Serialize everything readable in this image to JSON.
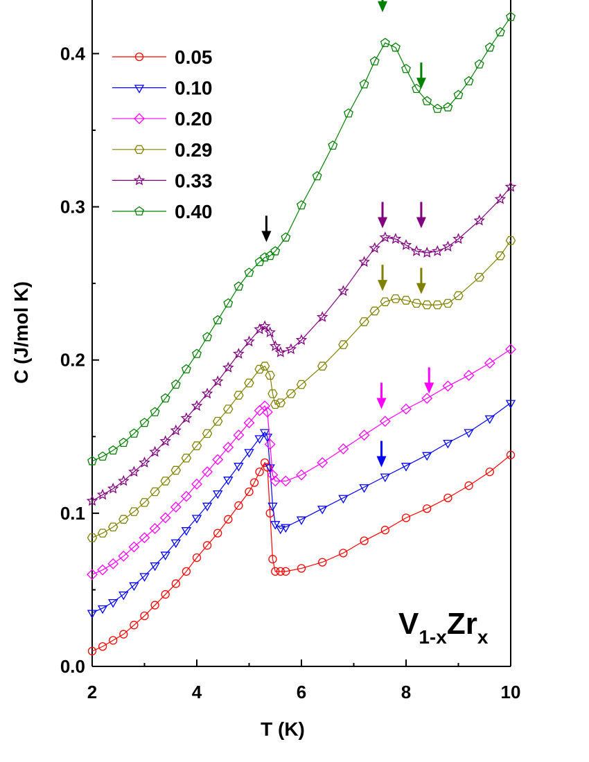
{
  "chart_data": {
    "type": "line",
    "xlabel": "T (K)",
    "ylabel": "C (J/mol K)",
    "annotation": [
      "V",
      "1-x",
      "Zr",
      "x"
    ],
    "xlim": [
      2,
      10
    ],
    "ylim": [
      0,
      0.435
    ],
    "xticks": [
      2,
      4,
      6,
      8,
      10
    ],
    "xminorticks": [
      3,
      5,
      7,
      9
    ],
    "yticks": [
      {
        "value": 0,
        "label": "0.0"
      },
      0.1,
      0.2,
      0.3,
      0.4
    ],
    "yminorticks": [
      0.05,
      0.15,
      0.25,
      0.35
    ],
    "legend": "upper left",
    "series": [
      {
        "name": "0.05",
        "color": "#ff0000",
        "marker": "circle",
        "x": [
          2.0,
          2.2,
          2.4,
          2.6,
          2.8,
          3.0,
          3.2,
          3.4,
          3.6,
          3.8,
          4.0,
          4.2,
          4.4,
          4.6,
          4.8,
          5.0,
          5.1,
          5.2,
          5.3,
          5.35,
          5.4,
          5.45,
          5.5,
          5.6,
          5.7,
          6.0,
          6.4,
          6.8,
          7.2,
          7.6,
          8.0,
          8.4,
          8.8,
          9.2,
          9.6,
          10.0
        ],
        "values": [
          0.01,
          0.013,
          0.017,
          0.021,
          0.027,
          0.033,
          0.04,
          0.047,
          0.054,
          0.062,
          0.071,
          0.079,
          0.087,
          0.096,
          0.105,
          0.114,
          0.12,
          0.127,
          0.133,
          0.13,
          0.1,
          0.07,
          0.062,
          0.062,
          0.062,
          0.064,
          0.068,
          0.074,
          0.082,
          0.089,
          0.097,
          0.103,
          0.11,
          0.118,
          0.127,
          0.138
        ]
      },
      {
        "name": "0.10",
        "color": "#0000ff",
        "marker": "triangle-down",
        "x": [
          2.0,
          2.2,
          2.4,
          2.6,
          2.8,
          3.0,
          3.2,
          3.4,
          3.6,
          3.8,
          4.0,
          4.2,
          4.4,
          4.6,
          4.8,
          5.0,
          5.2,
          5.3,
          5.35,
          5.4,
          5.45,
          5.5,
          5.6,
          5.7,
          6.0,
          6.4,
          6.8,
          7.2,
          7.6,
          8.0,
          8.4,
          8.8,
          9.2,
          9.6,
          10.0
        ],
        "values": [
          0.035,
          0.038,
          0.042,
          0.047,
          0.053,
          0.059,
          0.066,
          0.073,
          0.081,
          0.089,
          0.097,
          0.105,
          0.113,
          0.122,
          0.131,
          0.14,
          0.149,
          0.153,
          0.15,
          0.13,
          0.105,
          0.093,
          0.09,
          0.091,
          0.096,
          0.103,
          0.11,
          0.117,
          0.124,
          0.131,
          0.138,
          0.146,
          0.153,
          0.162,
          0.172
        ]
      },
      {
        "name": "0.20",
        "color": "#ff00ff",
        "marker": "diamond",
        "x": [
          2.0,
          2.2,
          2.4,
          2.6,
          2.8,
          3.0,
          3.2,
          3.4,
          3.6,
          3.8,
          4.0,
          4.2,
          4.4,
          4.6,
          4.8,
          5.0,
          5.2,
          5.3,
          5.35,
          5.4,
          5.45,
          5.5,
          5.7,
          6.0,
          6.4,
          6.8,
          7.2,
          7.6,
          8.0,
          8.4,
          8.8,
          9.2,
          9.6,
          10.0
        ],
        "values": [
          0.06,
          0.063,
          0.067,
          0.072,
          0.078,
          0.084,
          0.09,
          0.097,
          0.104,
          0.111,
          0.119,
          0.127,
          0.135,
          0.143,
          0.151,
          0.159,
          0.167,
          0.17,
          0.166,
          0.145,
          0.125,
          0.121,
          0.121,
          0.125,
          0.133,
          0.142,
          0.151,
          0.16,
          0.168,
          0.175,
          0.183,
          0.19,
          0.198,
          0.207
        ]
      },
      {
        "name": "0.29",
        "color": "#808000",
        "marker": "hexagon",
        "x": [
          2.0,
          2.2,
          2.4,
          2.6,
          2.8,
          3.0,
          3.2,
          3.4,
          3.6,
          3.8,
          4.0,
          4.2,
          4.4,
          4.6,
          4.8,
          5.0,
          5.2,
          5.3,
          5.4,
          5.45,
          5.5,
          5.6,
          5.8,
          6.0,
          6.4,
          6.8,
          7.2,
          7.4,
          7.6,
          7.8,
          8.0,
          8.2,
          8.4,
          8.6,
          8.8,
          9.0,
          9.4,
          9.8,
          10.0
        ],
        "values": [
          0.084,
          0.087,
          0.091,
          0.096,
          0.101,
          0.107,
          0.114,
          0.121,
          0.128,
          0.136,
          0.144,
          0.152,
          0.16,
          0.168,
          0.177,
          0.185,
          0.194,
          0.196,
          0.19,
          0.178,
          0.171,
          0.172,
          0.178,
          0.184,
          0.196,
          0.21,
          0.225,
          0.232,
          0.238,
          0.24,
          0.239,
          0.237,
          0.236,
          0.236,
          0.237,
          0.242,
          0.254,
          0.268,
          0.278
        ]
      },
      {
        "name": "0.33",
        "color": "#800080",
        "marker": "star",
        "x": [
          2.0,
          2.2,
          2.4,
          2.6,
          2.8,
          3.0,
          3.2,
          3.4,
          3.6,
          3.8,
          4.0,
          4.2,
          4.4,
          4.6,
          4.8,
          5.0,
          5.2,
          5.3,
          5.4,
          5.5,
          5.6,
          5.8,
          6.0,
          6.4,
          6.8,
          7.2,
          7.4,
          7.6,
          7.8,
          8.0,
          8.2,
          8.4,
          8.6,
          8.8,
          9.0,
          9.4,
          9.8,
          10.0
        ],
        "values": [
          0.108,
          0.112,
          0.116,
          0.121,
          0.127,
          0.133,
          0.14,
          0.147,
          0.154,
          0.162,
          0.17,
          0.178,
          0.186,
          0.195,
          0.204,
          0.212,
          0.22,
          0.222,
          0.218,
          0.209,
          0.205,
          0.207,
          0.213,
          0.228,
          0.245,
          0.264,
          0.273,
          0.28,
          0.279,
          0.275,
          0.271,
          0.27,
          0.271,
          0.274,
          0.279,
          0.291,
          0.305,
          0.313
        ]
      },
      {
        "name": "0.40",
        "color": "#008000",
        "marker": "pentagon",
        "x": [
          2.0,
          2.2,
          2.4,
          2.6,
          2.8,
          3.0,
          3.2,
          3.4,
          3.6,
          3.8,
          4.0,
          4.2,
          4.4,
          4.6,
          4.8,
          5.0,
          5.2,
          5.3,
          5.4,
          5.5,
          5.7,
          6.0,
          6.3,
          6.6,
          6.9,
          7.2,
          7.4,
          7.6,
          7.8,
          8.0,
          8.2,
          8.4,
          8.6,
          8.8,
          9.0,
          9.2,
          9.4,
          9.6,
          9.8,
          10.0
        ],
        "values": [
          0.134,
          0.137,
          0.141,
          0.146,
          0.152,
          0.159,
          0.166,
          0.175,
          0.184,
          0.194,
          0.204,
          0.215,
          0.226,
          0.237,
          0.248,
          0.257,
          0.264,
          0.267,
          0.268,
          0.271,
          0.28,
          0.301,
          0.32,
          0.34,
          0.361,
          0.38,
          0.395,
          0.407,
          0.404,
          0.39,
          0.377,
          0.369,
          0.364,
          0.365,
          0.373,
          0.382,
          0.393,
          0.404,
          0.414,
          0.424
        ]
      }
    ],
    "arrows": [
      {
        "x": 5.33,
        "y": 0.277,
        "color": "#000000"
      },
      {
        "x": 7.55,
        "y": 0.427,
        "color": "#008000"
      },
      {
        "x": 8.29,
        "y": 0.377,
        "color": "#008000"
      },
      {
        "x": 7.55,
        "y": 0.286,
        "color": "#800080"
      },
      {
        "x": 8.29,
        "y": 0.286,
        "color": "#800080"
      },
      {
        "x": 7.55,
        "y": 0.245,
        "color": "#808000"
      },
      {
        "x": 8.29,
        "y": 0.243,
        "color": "#808000"
      },
      {
        "x": 7.53,
        "y": 0.168,
        "color": "#ff00ff"
      },
      {
        "x": 8.44,
        "y": 0.178,
        "color": "#ff00ff"
      },
      {
        "x": 7.53,
        "y": 0.13,
        "color": "#0000ff"
      }
    ]
  }
}
